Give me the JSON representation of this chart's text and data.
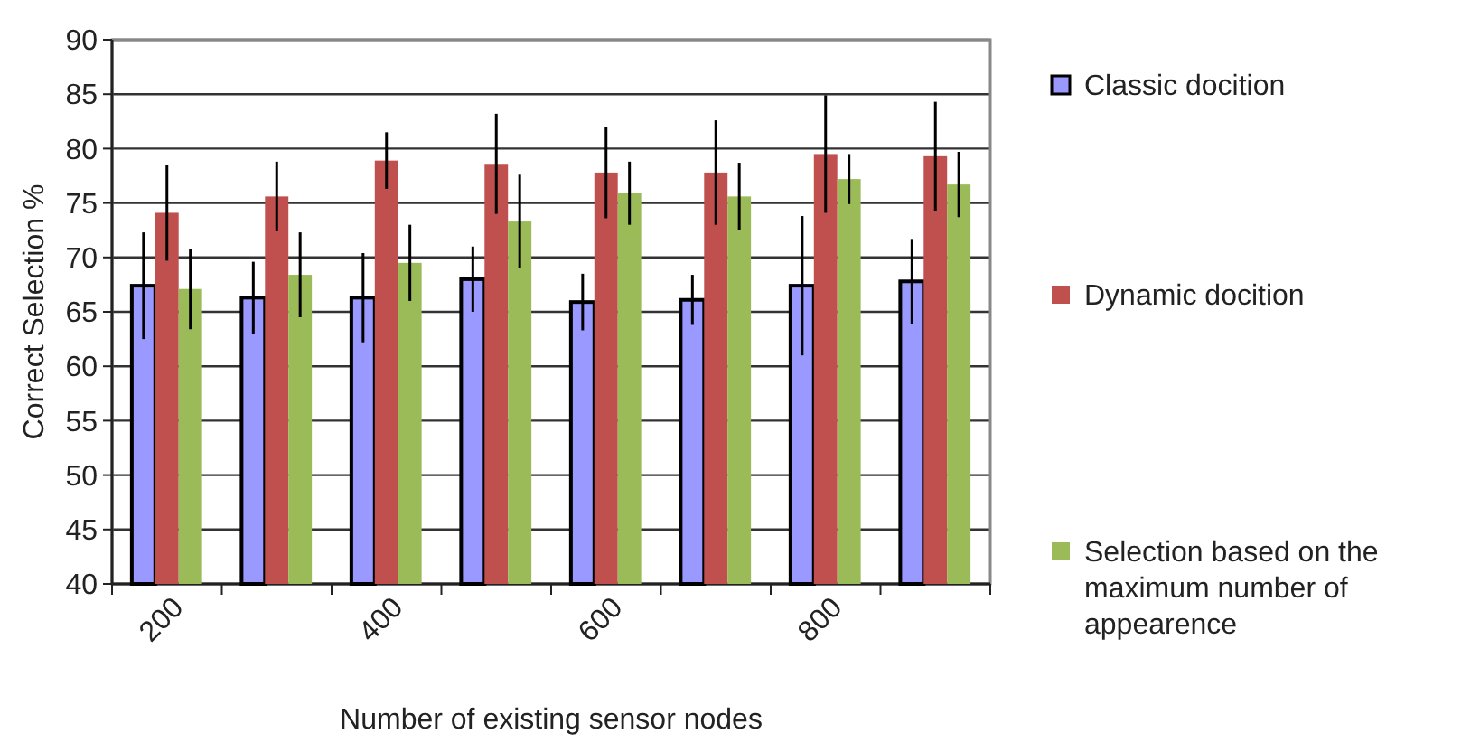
{
  "chart_data": {
    "type": "bar",
    "xlabel": "Number of existing sensor nodes",
    "ylabel": "Correct Selection %",
    "categories": [
      "200",
      null,
      "400",
      null,
      "600",
      null,
      "800",
      null
    ],
    "series": [
      {
        "name": "Classic docition",
        "color": "#9999ff",
        "values": [
          67.4,
          66.3,
          66.3,
          68.0,
          65.9,
          66.1,
          67.4,
          67.8
        ],
        "errors": [
          4.9,
          3.3,
          4.1,
          3.0,
          2.6,
          2.3,
          6.4,
          3.9
        ]
      },
      {
        "name": "Dynamic docition",
        "color": "#c0504d",
        "values": [
          74.1,
          75.6,
          78.9,
          78.6,
          77.8,
          77.8,
          79.5,
          79.3
        ],
        "errors": [
          4.4,
          3.2,
          2.6,
          4.6,
          4.2,
          4.8,
          5.4,
          5.0
        ]
      },
      {
        "name": "Selection based on the maximum number of appearence",
        "color": "#9bbb59",
        "values": [
          67.1,
          68.4,
          69.5,
          73.3,
          75.9,
          75.6,
          77.2,
          76.7
        ],
        "errors": [
          3.7,
          3.9,
          3.5,
          4.3,
          2.9,
          3.1,
          2.3,
          3.0
        ]
      }
    ],
    "ylim": [
      40,
      90
    ],
    "yticks": [
      40,
      45,
      50,
      55,
      60,
      65,
      70,
      75,
      80,
      85,
      90
    ],
    "grid": "y",
    "legend": "right"
  }
}
